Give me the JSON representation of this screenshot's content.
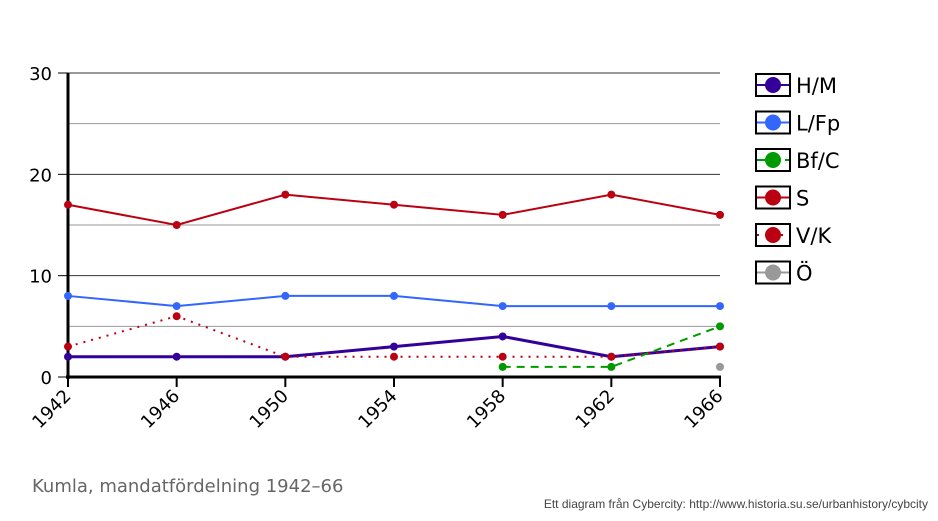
{
  "chart_data": {
    "type": "line",
    "title": "Kumla, mandatfördelning 1942–66",
    "credit": "Ett diagram från Cybercity: http://www.historia.su.se/urbanhistory/cybcity",
    "x": [
      1942,
      1946,
      1950,
      1954,
      1958,
      1962,
      1966
    ],
    "x_tick_labels": [
      "1942",
      "1946",
      "1950",
      "1954",
      "1958",
      "1962",
      "1966"
    ],
    "ylim": [
      0,
      30
    ],
    "y_ticks": [
      0,
      10,
      20,
      30
    ],
    "y_tick_labels": [
      "0",
      "10",
      "20",
      "30"
    ],
    "grid": true,
    "legend_position": "right",
    "series": [
      {
        "name": "H/M",
        "color": "#330099",
        "style": "solid",
        "values": [
          2,
          2,
          2,
          3,
          4,
          2,
          3
        ]
      },
      {
        "name": "L/Fp",
        "color": "#3366ff",
        "style": "solid",
        "values": [
          8,
          7,
          8,
          8,
          7,
          7,
          7
        ]
      },
      {
        "name": "Bf/C",
        "color": "#009900",
        "style": "dashed",
        "values": [
          null,
          null,
          null,
          null,
          1,
          1,
          5
        ]
      },
      {
        "name": "S",
        "color": "#bb0011",
        "style": "solid",
        "values": [
          17,
          15,
          18,
          17,
          16,
          18,
          16
        ]
      },
      {
        "name": "V/K",
        "color": "#bb0011",
        "style": "dotted",
        "values": [
          3,
          6,
          2,
          2,
          2,
          2,
          3
        ]
      },
      {
        "name": "Ö",
        "color": "#999999",
        "style": "solid",
        "values": [
          null,
          null,
          null,
          null,
          null,
          null,
          1
        ]
      }
    ]
  }
}
